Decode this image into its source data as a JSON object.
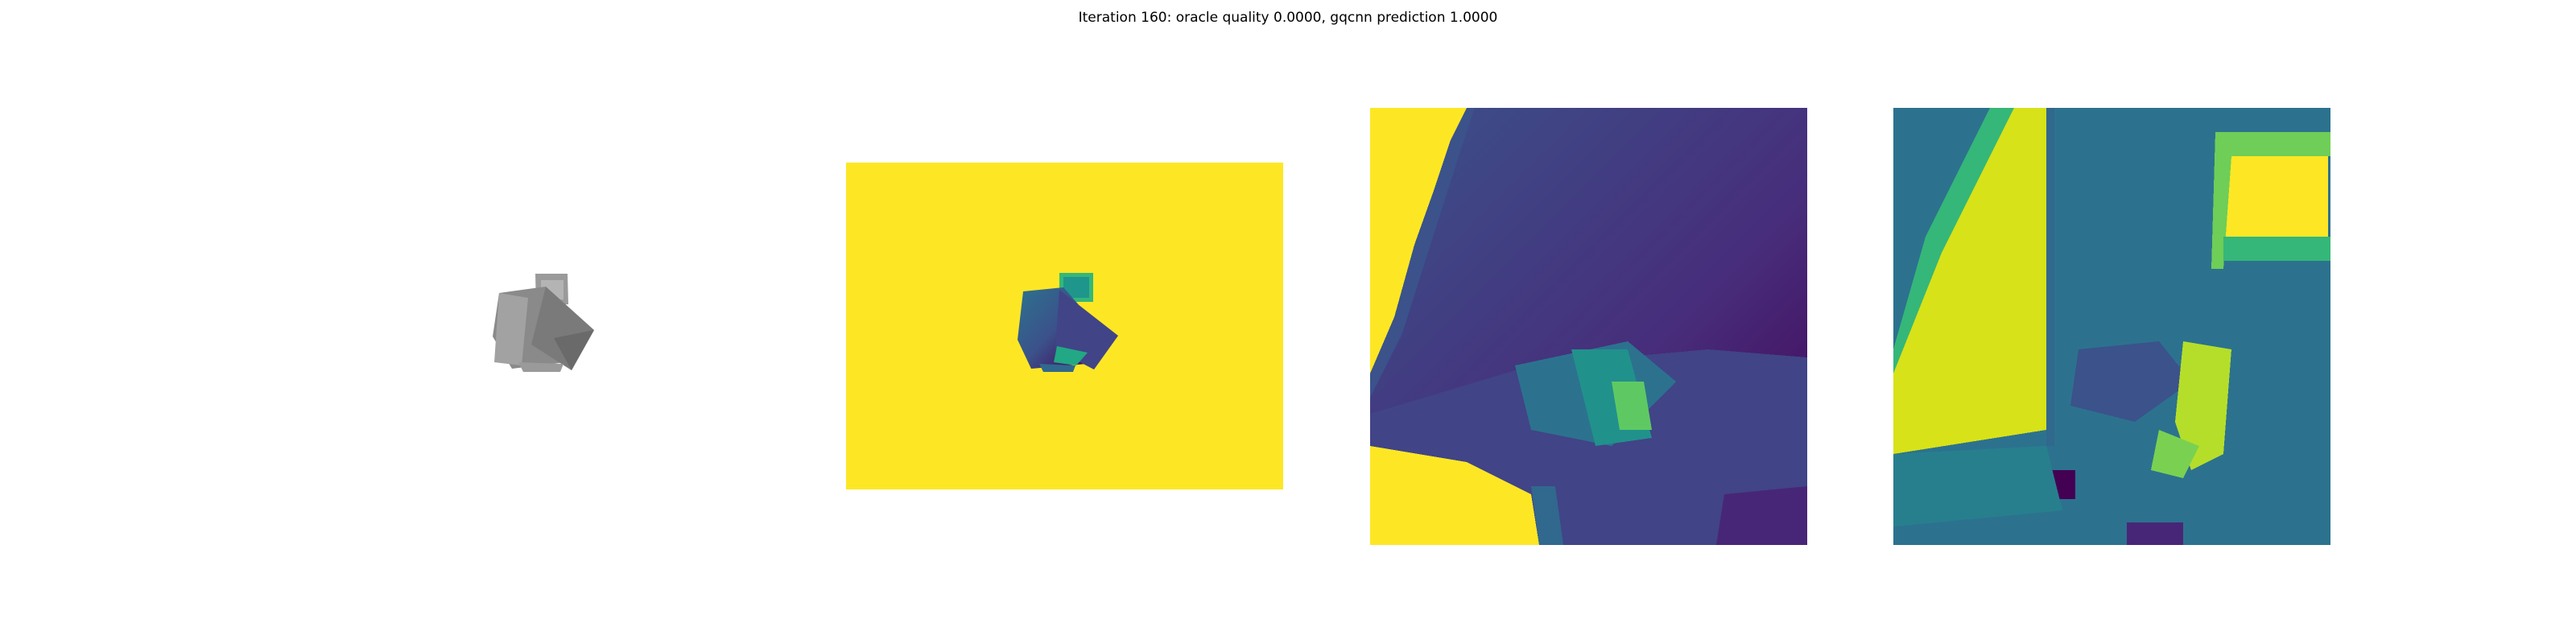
{
  "figure": {
    "title": "Iteration 160: oracle quality 0.0000, gqcnn prediction 1.0000"
  },
  "colormap": {
    "name": "viridis",
    "background": "#fde725",
    "dark": "#440154",
    "deep_purple": "#46327e",
    "blue": "#365c8d",
    "teal": "#277f8e",
    "green": "#1fa187",
    "light_green": "#4ac16d",
    "yellow_green": "#a0da39",
    "mesh_gray": "#8c8c8c"
  }
}
